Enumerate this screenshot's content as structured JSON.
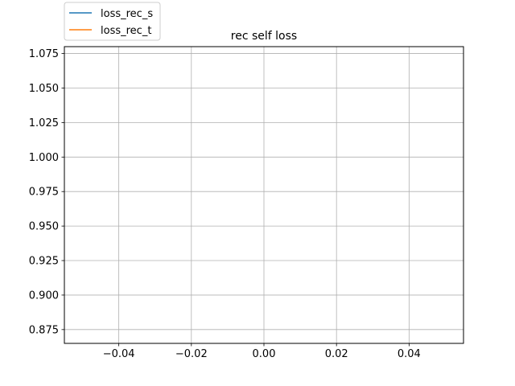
{
  "chart_data": {
    "type": "line",
    "title": "rec self loss",
    "xlabel": "",
    "ylabel": "",
    "xlim": [
      -0.055,
      0.055
    ],
    "ylim": [
      0.865,
      1.08
    ],
    "xticks": [
      -0.04,
      -0.02,
      0.0,
      0.02,
      0.04
    ],
    "xtick_labels": [
      "−0.04",
      "−0.02",
      "0.00",
      "0.02",
      "0.04"
    ],
    "yticks": [
      0.875,
      0.9,
      0.925,
      0.95,
      0.975,
      1.0,
      1.025,
      1.05,
      1.075
    ],
    "ytick_labels": [
      "0.875",
      "0.900",
      "0.925",
      "0.950",
      "0.975",
      "1.000",
      "1.025",
      "1.050",
      "1.075"
    ],
    "grid": true,
    "legend_position": "top-left, outside above axes",
    "series": [
      {
        "name": "loss_rec_s",
        "color": "#1f77b4",
        "x": [],
        "y": []
      },
      {
        "name": "loss_rec_t",
        "color": "#ff7f0e",
        "x": [],
        "y": []
      }
    ]
  }
}
